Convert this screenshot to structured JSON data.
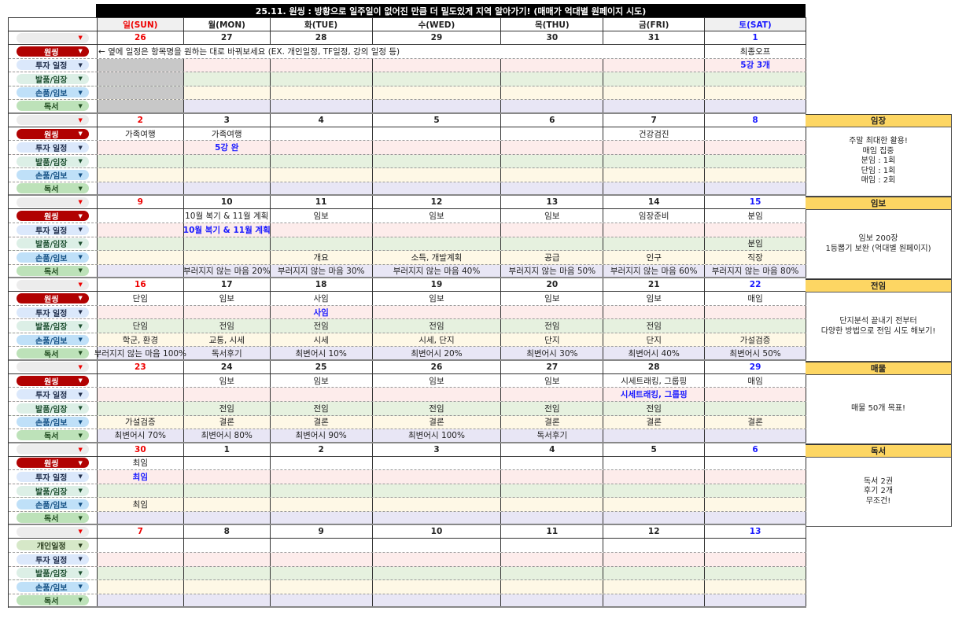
{
  "title": "25.11. 원씽 : 방황으로 일주일이 없어진 만큼 더 밀도있게 지역 알아가기! (매매가 억대별 원페이지 시도)",
  "weekdays": [
    "일(SUN)",
    "월(MON)",
    "화(TUE)",
    "수(WED)",
    "목(THU)",
    "금(FRI)",
    "토(SAT)"
  ],
  "colors": {
    "sunday": "#e00000",
    "saturday": "#1a1aff",
    "oneThing": "#b10202",
    "highlight": "#fdd663"
  },
  "row_styles": {
    "원씽": {
      "bg": "#b10202",
      "fg": "#ffffff"
    },
    "투자 일정": {
      "bg": "#dbe8fb",
      "fg": "#1f2d4a"
    },
    "발품/임장": {
      "bg": "#dcefe6",
      "fg": "#1b4d2e"
    },
    "손품/임보": {
      "bg": "#bfe0f8",
      "fg": "#124e82"
    },
    "독서": {
      "bg": "#bde2b9",
      "fg": "#1e4a1e"
    },
    "개인일정": {
      "bg": "#d6e8c8",
      "fg": "#2a3d1e"
    }
  },
  "weeks": [
    {
      "dates": [
        "26",
        "27",
        "28",
        "29",
        "30",
        "31",
        "1"
      ],
      "note": "← 옆에 일정은 항목명을 원하는 대로 바꿔보세요 (EX. 개인일정, TF일정, 강의 일정 등)",
      "grey_sunday": true,
      "rows": [
        {
          "label": "원씽",
          "cells": [
            "",
            "",
            "",
            "",
            "",
            "",
            "최종오프"
          ]
        },
        {
          "label": "투자 일정",
          "cells": [
            "",
            "",
            "",
            "",
            "",
            "",
            "5강 3개"
          ]
        },
        {
          "label": "발품/임장",
          "cells": [
            "",
            "",
            "",
            "",
            "",
            "",
            ""
          ]
        },
        {
          "label": "손품/임보",
          "cells": [
            "",
            "",
            "",
            "",
            "",
            "",
            ""
          ]
        },
        {
          "label": "독서",
          "cells": [
            "",
            "",
            "",
            "",
            "",
            "",
            ""
          ]
        }
      ]
    },
    {
      "dates": [
        "2",
        "3",
        "4",
        "5",
        "6",
        "7",
        "8"
      ],
      "rows": [
        {
          "label": "원씽",
          "cells": [
            "가족여행",
            "가족여행",
            "",
            "",
            "",
            "건강검진",
            ""
          ]
        },
        {
          "label": "투자 일정",
          "cells": [
            "",
            "5강 완",
            "",
            "",
            "",
            "",
            ""
          ]
        },
        {
          "label": "발품/임장",
          "cells": [
            "",
            "",
            "",
            "",
            "",
            "",
            ""
          ]
        },
        {
          "label": "손품/임보",
          "cells": [
            "",
            "",
            "",
            "",
            "",
            "",
            ""
          ]
        },
        {
          "label": "독서",
          "cells": [
            "",
            "",
            "",
            "",
            "",
            "",
            ""
          ]
        }
      ]
    },
    {
      "dates": [
        "9",
        "10",
        "11",
        "12",
        "13",
        "14",
        "15"
      ],
      "rows": [
        {
          "label": "원씽",
          "cells": [
            "",
            "10월 복기 & 11월 계획",
            "임보",
            "임보",
            "임보",
            "임장준비",
            "분임"
          ]
        },
        {
          "label": "투자 일정",
          "cells": [
            "",
            "10월 복기 & 11월 계획",
            "",
            "",
            "",
            "",
            ""
          ]
        },
        {
          "label": "발품/임장",
          "cells": [
            "",
            "",
            "",
            "",
            "",
            "",
            "분임"
          ]
        },
        {
          "label": "손품/임보",
          "cells": [
            "",
            "",
            "개요",
            "소득, 개발계획",
            "공급",
            "인구",
            "직장"
          ]
        },
        {
          "label": "독서",
          "cells": [
            "",
            "부러지지 않는 마음 20%",
            "부러지지 않는 마음 30%",
            "부러지지 않는 마음 40%",
            "부러지지 않는 마음 50%",
            "부러지지 않는 마음 60%",
            "부러지지 않는 마음 80%"
          ]
        }
      ]
    },
    {
      "dates": [
        "16",
        "17",
        "18",
        "19",
        "20",
        "21",
        "22"
      ],
      "rows": [
        {
          "label": "원씽",
          "cells": [
            "단임",
            "임보",
            "사임",
            "임보",
            "임보",
            "임보",
            "매임"
          ]
        },
        {
          "label": "투자 일정",
          "cells": [
            "",
            "",
            "사임",
            "",
            "",
            "",
            ""
          ]
        },
        {
          "label": "발품/임장",
          "cells": [
            "단임",
            "전임",
            "전임",
            "전임",
            "전임",
            "전임",
            ""
          ]
        },
        {
          "label": "손품/임보",
          "cells": [
            "학군, 환경",
            "교통, 시세",
            "시세",
            "시세, 단지",
            "단지",
            "단지",
            "가설검증"
          ]
        },
        {
          "label": "독서",
          "cells": [
            "부러지지 않는 마음 100%",
            "독서후기",
            "최변어시 10%",
            "최변어시 20%",
            "최변어시 30%",
            "최변어시 40%",
            "최변어시 50%"
          ]
        }
      ]
    },
    {
      "dates": [
        "23",
        "24",
        "25",
        "26",
        "27",
        "28",
        "29"
      ],
      "rows": [
        {
          "label": "원씽",
          "cells": [
            "",
            "임보",
            "임보",
            "임보",
            "임보",
            "시세트래킹, 그룹핑",
            "매임"
          ]
        },
        {
          "label": "투자 일정",
          "cells": [
            "",
            "",
            "",
            "",
            "",
            "시세트래킹, 그룹핑",
            ""
          ]
        },
        {
          "label": "발품/임장",
          "cells": [
            "",
            "전임",
            "전임",
            "전임",
            "전임",
            "전임",
            ""
          ]
        },
        {
          "label": "손품/임보",
          "cells": [
            "가설검증",
            "결론",
            "결론",
            "결론",
            "결론",
            "결론",
            "결론"
          ]
        },
        {
          "label": "독서",
          "cells": [
            "최변어시 70%",
            "최변어시 80%",
            "최변어시 90%",
            "최변어시 100%",
            "독서후기",
            "",
            ""
          ]
        }
      ]
    },
    {
      "dates": [
        "30",
        "1",
        "2",
        "3",
        "4",
        "5",
        "6"
      ],
      "rows": [
        {
          "label": "원씽",
          "cells": [
            "최임",
            "",
            "",
            "",
            "",
            "",
            ""
          ]
        },
        {
          "label": "투자 일정",
          "cells": [
            "최임",
            "",
            "",
            "",
            "",
            "",
            ""
          ]
        },
        {
          "label": "발품/임장",
          "cells": [
            "",
            "",
            "",
            "",
            "",
            "",
            ""
          ]
        },
        {
          "label": "손품/임보",
          "cells": [
            "최임",
            "",
            "",
            "",
            "",
            "",
            ""
          ]
        },
        {
          "label": "독서",
          "cells": [
            "",
            "",
            "",
            "",
            "",
            "",
            ""
          ]
        }
      ]
    },
    {
      "dates": [
        "7",
        "8",
        "9",
        "10",
        "11",
        "12",
        "13"
      ],
      "rows": [
        {
          "label": "개인일정",
          "cells": [
            "",
            "",
            "",
            "",
            "",
            "",
            ""
          ]
        },
        {
          "label": "투자 일정",
          "cells": [
            "",
            "",
            "",
            "",
            "",
            "",
            ""
          ]
        },
        {
          "label": "발품/임장",
          "cells": [
            "",
            "",
            "",
            "",
            "",
            "",
            ""
          ]
        },
        {
          "label": "손품/임보",
          "cells": [
            "",
            "",
            "",
            "",
            "",
            "",
            ""
          ]
        },
        {
          "label": "독서",
          "cells": [
            "",
            "",
            "",
            "",
            "",
            "",
            ""
          ]
        }
      ]
    }
  ],
  "side": [
    {
      "title": "임장",
      "body": "주말 최대한 활용!\n매임 집중\n분임 : 1회\n단임 : 1회\n매임 : 2회"
    },
    {
      "title": "임보",
      "body": "임보 200장\n1등뽑기 보완 (억대별 원페이지)"
    },
    {
      "title": "전임",
      "body": "단지분석 끝내기 전부터\n다양한 방법으로 전임 시도 해보기!"
    },
    {
      "title": "매물",
      "body": "매물 50개 목표!"
    },
    {
      "title": "독서",
      "body": "독서 2권\n후기 2개\n무조건!"
    }
  ]
}
